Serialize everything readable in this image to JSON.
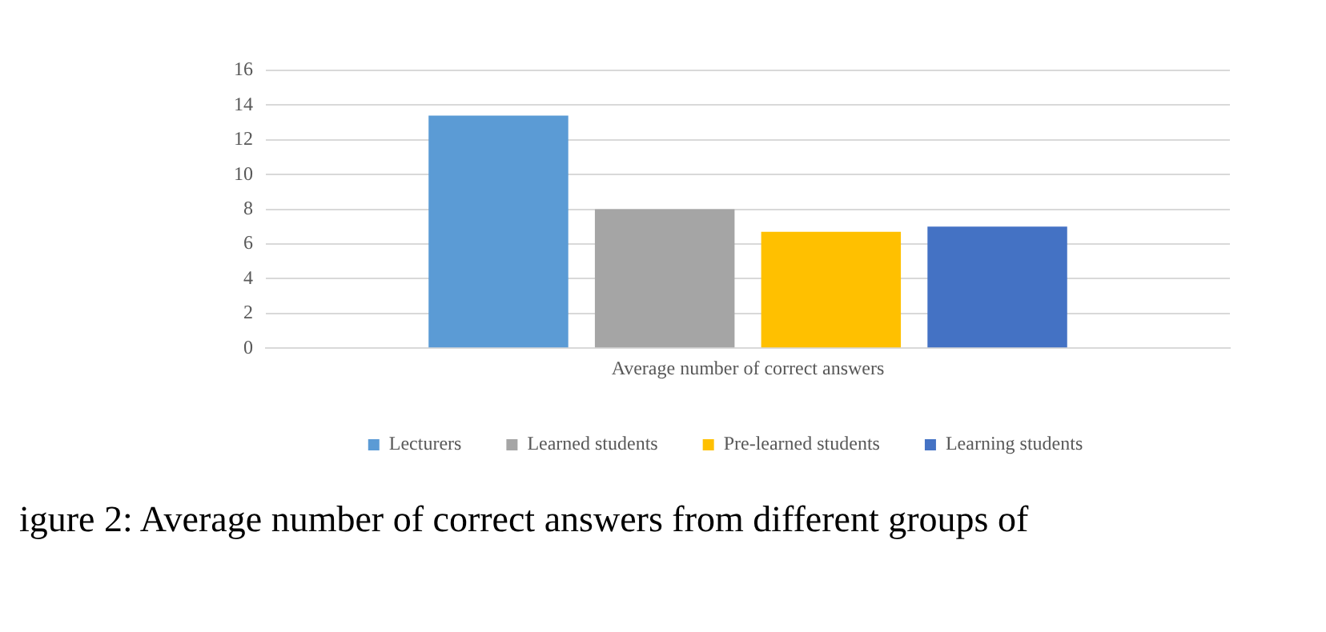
{
  "chart_data": {
    "type": "bar",
    "categories": [
      "Average number of correct answers"
    ],
    "series": [
      {
        "name": "Lecturers",
        "color": "#5b9bd5",
        "values": [
          13.4
        ]
      },
      {
        "name": "Learned students",
        "color": "#a5a5a5",
        "values": [
          8.0
        ]
      },
      {
        "name": "Pre-learned students",
        "color": "#ffc000",
        "values": [
          6.7
        ]
      },
      {
        "name": "Learning students",
        "color": "#4472c4",
        "values": [
          7.0
        ]
      }
    ],
    "ylim": [
      0,
      16
    ],
    "yticks": [
      0,
      2,
      4,
      6,
      8,
      10,
      12,
      14,
      16
    ],
    "grid": "y",
    "legend": "bottom",
    "annotations": [
      "igure 2: Average number of correct answers from different groups of"
    ]
  }
}
